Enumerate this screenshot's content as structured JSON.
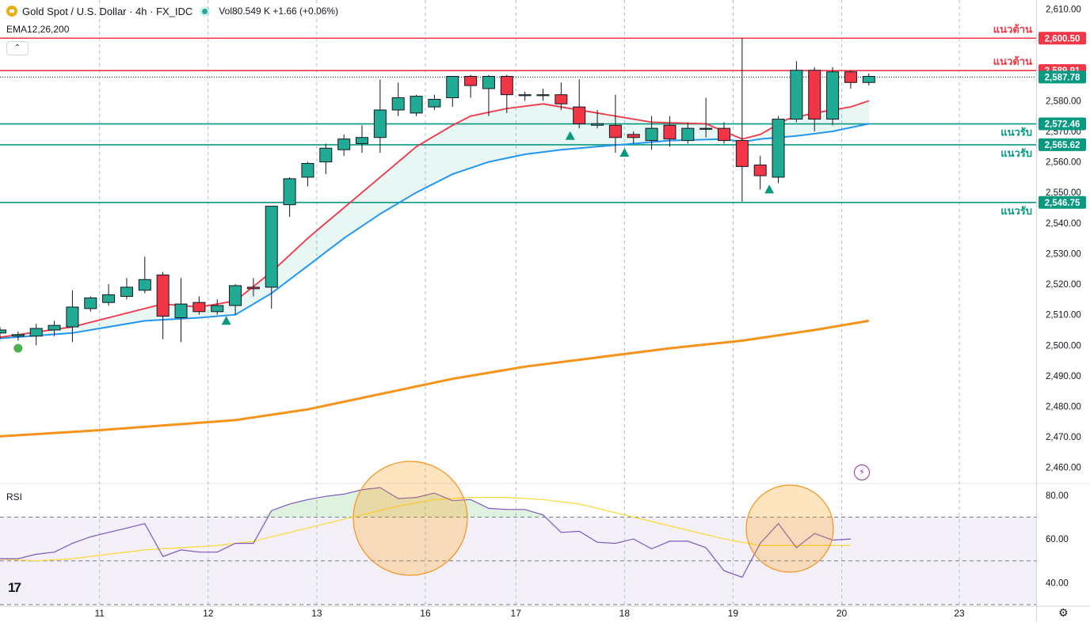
{
  "header": {
    "symbol": "Gold Spot / U.S. Dollar · 4h · FX_IDC",
    "volume_text": "Vol80.549 K +1.66 (+0.06%)",
    "indicator": "EMA12,26,200",
    "rsi_label": "RSI",
    "logo_icon": "gold-coin-icon",
    "live_icon": "market-open-dot-icon"
  },
  "colors": {
    "up": "#22ab94",
    "down": "#f23645",
    "ema_fast": "#f23645",
    "ema_mid": "#2196f3",
    "ema_slow": "#f7931a",
    "rsi": "#7e57c2",
    "rsi_ma": "#fdd835",
    "support": "#089981",
    "resistance": "#f23645"
  },
  "chart_data": {
    "type": "candlestick",
    "timeframe": "4h",
    "y_range": [
      2455,
      2613
    ],
    "x_ticks": [
      {
        "label": "11",
        "bar": 5.5
      },
      {
        "label": "12",
        "bar": 11.5
      },
      {
        "label": "13",
        "bar": 17.5
      },
      {
        "label": "16",
        "bar": 23.5
      },
      {
        "label": "17",
        "bar": 28.5
      },
      {
        "label": "18",
        "bar": 34.5
      },
      {
        "label": "19",
        "bar": 40.5
      },
      {
        "label": "20",
        "bar": 46.5
      },
      {
        "label": "23",
        "bar": 53
      }
    ],
    "y_ticks": [
      "2,610.00",
      "2,600.00",
      "2,590.00",
      "2,580.00",
      "2,570.00",
      "2,560.00",
      "2,550.00",
      "2,540.00",
      "2,530.00",
      "2,520.00",
      "2,510.00",
      "2,500.00",
      "2,490.00",
      "2,480.00",
      "2,470.00",
      "2,460.00"
    ],
    "candles": [
      {
        "o": 2504,
        "h": 2506,
        "l": 2502,
        "c": 2505
      },
      {
        "o": 2503,
        "h": 2504.5,
        "l": 2501.5,
        "c": 2503.5
      },
      {
        "o": 2503,
        "h": 2507,
        "l": 2500,
        "c": 2505.5
      },
      {
        "o": 2505,
        "h": 2508,
        "l": 2503,
        "c": 2506.5
      },
      {
        "o": 2506,
        "h": 2518,
        "l": 2501,
        "c": 2512.5
      },
      {
        "o": 2512,
        "h": 2516,
        "l": 2511,
        "c": 2515.5
      },
      {
        "o": 2514,
        "h": 2520,
        "l": 2513,
        "c": 2516.5
      },
      {
        "o": 2516,
        "h": 2522,
        "l": 2515,
        "c": 2519
      },
      {
        "o": 2518,
        "h": 2529,
        "l": 2517,
        "c": 2521.5
      },
      {
        "o": 2523,
        "h": 2524,
        "l": 2502,
        "c": 2509.5
      },
      {
        "o": 2509,
        "h": 2522,
        "l": 2501,
        "c": 2513.5
      },
      {
        "o": 2514,
        "h": 2516,
        "l": 2510,
        "c": 2511
      },
      {
        "o": 2511,
        "h": 2515,
        "l": 2510,
        "c": 2513
      },
      {
        "o": 2513,
        "h": 2520,
        "l": 2510,
        "c": 2519.5
      },
      {
        "o": 2519,
        "h": 2522,
        "l": 2516,
        "c": 2518.5
      },
      {
        "o": 2519,
        "h": 2544,
        "l": 2512,
        "c": 2545.5
      },
      {
        "o": 2546,
        "h": 2555,
        "l": 2542,
        "c": 2554.5
      },
      {
        "o": 2555,
        "h": 2560,
        "l": 2552,
        "c": 2559.5
      },
      {
        "o": 2560,
        "h": 2566,
        "l": 2556,
        "c": 2564.5
      },
      {
        "o": 2564,
        "h": 2569,
        "l": 2562,
        "c": 2567.5
      },
      {
        "o": 2566,
        "h": 2572,
        "l": 2563,
        "c": 2568
      },
      {
        "o": 2568,
        "h": 2587,
        "l": 2563,
        "c": 2577
      },
      {
        "o": 2577,
        "h": 2586,
        "l": 2575,
        "c": 2581
      },
      {
        "o": 2576,
        "h": 2582,
        "l": 2575,
        "c": 2581.5
      },
      {
        "o": 2578,
        "h": 2582,
        "l": 2577,
        "c": 2580.5
      },
      {
        "o": 2581,
        "h": 2588,
        "l": 2578,
        "c": 2588
      },
      {
        "o": 2588,
        "h": 2588.5,
        "l": 2581,
        "c": 2585
      },
      {
        "o": 2584,
        "h": 2588.5,
        "l": 2575,
        "c": 2588
      },
      {
        "o": 2588,
        "h": 2588.5,
        "l": 2576,
        "c": 2582
      },
      {
        "o": 2582,
        "h": 2583,
        "l": 2580,
        "c": 2582
      },
      {
        "o": 2582,
        "h": 2584,
        "l": 2580,
        "c": 2582
      },
      {
        "o": 2582,
        "h": 2586,
        "l": 2577,
        "c": 2579
      },
      {
        "o": 2578,
        "h": 2587,
        "l": 2571,
        "c": 2572.5
      },
      {
        "o": 2572,
        "h": 2577,
        "l": 2571,
        "c": 2572.5
      },
      {
        "o": 2572,
        "h": 2582,
        "l": 2563,
        "c": 2568
      },
      {
        "o": 2569,
        "h": 2570,
        "l": 2566,
        "c": 2568
      },
      {
        "o": 2567,
        "h": 2575,
        "l": 2564,
        "c": 2571
      },
      {
        "o": 2572,
        "h": 2575,
        "l": 2565,
        "c": 2567.5
      },
      {
        "o": 2567,
        "h": 2573,
        "l": 2566,
        "c": 2571
      },
      {
        "o": 2571,
        "h": 2581,
        "l": 2568,
        "c": 2571
      },
      {
        "o": 2571,
        "h": 2573,
        "l": 2566,
        "c": 2567
      },
      {
        "o": 2567,
        "h": 2600.5,
        "l": 2547,
        "c": 2558.5
      },
      {
        "o": 2559,
        "h": 2562,
        "l": 2551,
        "c": 2555.5
      },
      {
        "o": 2555,
        "h": 2575,
        "l": 2553,
        "c": 2574
      },
      {
        "o": 2574,
        "h": 2593,
        "l": 2573,
        "c": 2590
      },
      {
        "o": 2590,
        "h": 2591,
        "l": 2570,
        "c": 2574
      },
      {
        "o": 2574,
        "h": 2591,
        "l": 2572,
        "c": 2589.5
      },
      {
        "o": 2589.5,
        "h": 2590,
        "l": 2584,
        "c": 2586
      },
      {
        "o": 2586,
        "h": 2589,
        "l": 2585,
        "c": 2588
      }
    ],
    "ema12": [
      [
        -0.5,
        2502.2
      ],
      [
        4,
        2506
      ],
      [
        8,
        2512
      ],
      [
        9,
        2513.5
      ],
      [
        11,
        2512.5
      ],
      [
        13,
        2514.5
      ],
      [
        15,
        2524
      ],
      [
        17,
        2535
      ],
      [
        19,
        2545
      ],
      [
        21,
        2555
      ],
      [
        23,
        2565
      ],
      [
        25,
        2572
      ],
      [
        26,
        2575
      ],
      [
        28,
        2577.5
      ],
      [
        30,
        2579
      ],
      [
        33,
        2576
      ],
      [
        34.5,
        2574.5
      ],
      [
        36,
        2573
      ],
      [
        39,
        2572.5
      ],
      [
        40,
        2570
      ],
      [
        41,
        2567.5
      ],
      [
        42,
        2569
      ],
      [
        43.5,
        2574
      ],
      [
        45,
        2576
      ],
      [
        47,
        2578
      ],
      [
        48,
        2580
      ]
    ],
    "ema26": [
      [
        -0.5,
        2502
      ],
      [
        4,
        2504
      ],
      [
        8,
        2508
      ],
      [
        11,
        2509
      ],
      [
        13,
        2510
      ],
      [
        15,
        2517
      ],
      [
        17,
        2526
      ],
      [
        19,
        2535
      ],
      [
        21,
        2543
      ],
      [
        23,
        2550
      ],
      [
        25,
        2556
      ],
      [
        27,
        2560
      ],
      [
        29,
        2562.5
      ],
      [
        31,
        2564
      ],
      [
        33,
        2565
      ],
      [
        35,
        2566
      ],
      [
        37,
        2567
      ],
      [
        40,
        2567.5
      ],
      [
        41,
        2566.5
      ],
      [
        42,
        2567.5
      ],
      [
        44,
        2568.5
      ],
      [
        46,
        2570
      ],
      [
        48,
        2572.5
      ]
    ],
    "ema200": [
      [
        -0.5,
        2470
      ],
      [
        5,
        2472
      ],
      [
        13,
        2475.5
      ],
      [
        17,
        2479
      ],
      [
        21,
        2484
      ],
      [
        25,
        2489
      ],
      [
        29,
        2493
      ],
      [
        33,
        2496
      ],
      [
        37,
        2499
      ],
      [
        41,
        2501.5
      ],
      [
        45,
        2505
      ],
      [
        48,
        2508
      ]
    ],
    "horizontal_levels": [
      {
        "price": 2600.5,
        "label": "แนวต้าน",
        "tag": "2,600.50",
        "type": "resistance"
      },
      {
        "price": 2589.91,
        "label": "แนวต้าน",
        "tag": "2,589.91",
        "type": "resistance"
      },
      {
        "price": 2572.46,
        "label": "แนวรับ",
        "tag": "2,572.46",
        "type": "support"
      },
      {
        "price": 2565.62,
        "label": "แนวรับ",
        "tag": "2,565.62",
        "type": "support"
      },
      {
        "price": 2546.75,
        "label": "แนวรับ",
        "tag": "2,546.75",
        "type": "support"
      }
    ],
    "last_price": {
      "price": 2587.78,
      "tag": "2,587.78"
    },
    "signals": [
      {
        "bar": 1,
        "price": 2499,
        "shape": "circle"
      },
      {
        "bar": 12.5,
        "price": 2508,
        "shape": "triangle-up"
      },
      {
        "bar": 31.5,
        "price": 2568.5,
        "shape": "triangle-up"
      },
      {
        "bar": 34.5,
        "price": 2563,
        "shape": "triangle-up"
      },
      {
        "bar": 42.5,
        "price": 2551,
        "shape": "triangle-up"
      }
    ],
    "rsi": {
      "y_range": [
        30,
        85
      ],
      "levels": [
        70,
        50,
        30
      ],
      "y_ticks": [
        "80.00",
        "60.00",
        "40.00"
      ],
      "rsi": [
        [
          -0.5,
          51
        ],
        [
          1,
          51
        ],
        [
          2,
          53
        ],
        [
          3,
          54
        ],
        [
          4,
          58
        ],
        [
          5,
          61
        ],
        [
          6,
          63
        ],
        [
          7,
          65
        ],
        [
          8,
          67
        ],
        [
          9,
          52
        ],
        [
          10,
          55
        ],
        [
          11,
          54
        ],
        [
          12,
          54
        ],
        [
          13,
          58
        ],
        [
          14,
          58
        ],
        [
          15,
          73
        ],
        [
          16,
          76
        ],
        [
          17,
          78
        ],
        [
          18,
          79.5
        ],
        [
          19,
          80.5
        ],
        [
          20,
          82.5
        ],
        [
          21,
          83.5
        ],
        [
          22,
          78.5
        ],
        [
          23,
          79
        ],
        [
          24,
          81
        ],
        [
          25,
          77.5
        ],
        [
          26,
          78
        ],
        [
          27,
          74
        ],
        [
          28,
          73.5
        ],
        [
          29,
          73.5
        ],
        [
          30,
          71
        ],
        [
          31,
          63
        ],
        [
          32,
          63.5
        ],
        [
          33,
          58.5
        ],
        [
          34,
          58
        ],
        [
          35,
          60
        ],
        [
          36,
          55.5
        ],
        [
          37,
          59
        ],
        [
          38,
          59
        ],
        [
          39,
          56
        ],
        [
          40,
          45.5
        ],
        [
          41,
          42.5
        ],
        [
          42,
          58
        ],
        [
          43,
          67
        ],
        [
          44,
          56
        ],
        [
          45,
          62.5
        ],
        [
          46,
          59.5
        ],
        [
          47,
          60
        ]
      ],
      "rsi_ma": [
        [
          -0.5,
          51
        ],
        [
          2,
          50
        ],
        [
          4,
          51
        ],
        [
          6,
          53
        ],
        [
          8,
          55
        ],
        [
          10,
          56
        ],
        [
          12,
          57
        ],
        [
          14,
          59
        ],
        [
          16,
          63
        ],
        [
          18,
          67
        ],
        [
          20,
          71
        ],
        [
          22,
          75
        ],
        [
          24,
          78
        ],
        [
          26,
          79
        ],
        [
          28,
          79
        ],
        [
          30,
          78
        ],
        [
          32,
          76
        ],
        [
          34,
          72
        ],
        [
          36,
          68
        ],
        [
          38,
          64
        ],
        [
          40,
          60
        ],
        [
          42,
          57
        ],
        [
          44,
          57
        ],
        [
          46,
          57
        ],
        [
          47,
          57
        ]
      ]
    },
    "annotations": [
      {
        "type": "circle",
        "bar": 23.5,
        "price": 2574,
        "note": "price-highlight"
      },
      {
        "type": "circle",
        "bar": 44,
        "price": 2574,
        "note": "price-highlight"
      }
    ]
  },
  "icons": {
    "lightning": "lightning-icon",
    "settings": "settings-icon",
    "tv_logo": "tradingview-logo"
  }
}
